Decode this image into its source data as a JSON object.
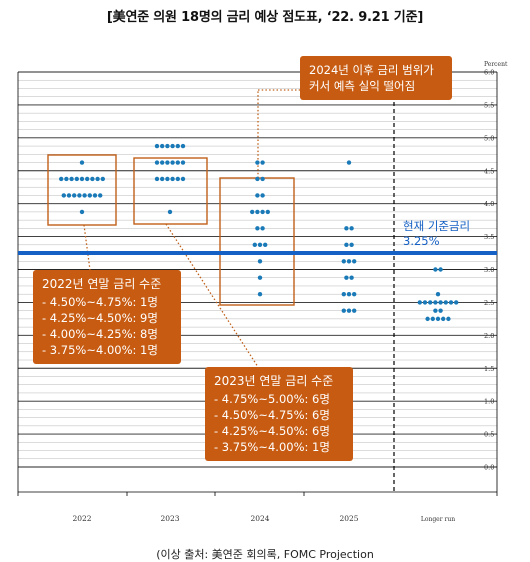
{
  "title": "[美연준 의원 18명의 금리 예상 점도표, ‘22. 9.21 기준]",
  "source": "(이상 출처: 美연준 회의록, FOMC Projection",
  "colors": {
    "dot": "#1a7ab8",
    "current_line": "#1560c4",
    "box_border": "#c0611a",
    "callout_bg": "#c75b12",
    "leader": "#c0611a",
    "grid": "#000000"
  },
  "chart_data": {
    "type": "scatter",
    "title": "",
    "ylabel": "Percent",
    "ylim": [
      0.0,
      6.0
    ],
    "y_ticks": [
      "0.0",
      "0.5",
      "1.0",
      "1.5",
      "2.0",
      "2.5",
      "3.0",
      "3.5",
      "4.0",
      "4.5",
      "5.0",
      "5.5",
      "6.0"
    ],
    "categories": [
      "2022",
      "2023",
      "2024",
      "2025",
      "Longer run"
    ],
    "dots": [
      {
        "category": "2022",
        "levels": [
          {
            "rate": 4.625,
            "count": 1
          },
          {
            "rate": 4.375,
            "count": 9
          },
          {
            "rate": 4.125,
            "count": 8
          },
          {
            "rate": 3.875,
            "count": 1
          }
        ]
      },
      {
        "category": "2023",
        "levels": [
          {
            "rate": 4.875,
            "count": 6
          },
          {
            "rate": 4.625,
            "count": 6
          },
          {
            "rate": 4.375,
            "count": 6
          },
          {
            "rate": 3.875,
            "count": 1
          }
        ]
      },
      {
        "category": "2024",
        "levels": [
          {
            "rate": 4.625,
            "count": 2
          },
          {
            "rate": 4.375,
            "count": 2
          },
          {
            "rate": 4.125,
            "count": 2
          },
          {
            "rate": 3.875,
            "count": 4
          },
          {
            "rate": 3.625,
            "count": 2
          },
          {
            "rate": 3.375,
            "count": 3
          },
          {
            "rate": 3.125,
            "count": 1
          },
          {
            "rate": 2.875,
            "count": 1
          },
          {
            "rate": 2.625,
            "count": 1
          }
        ]
      },
      {
        "category": "2025",
        "levels": [
          {
            "rate": 4.625,
            "count": 1
          },
          {
            "rate": 3.625,
            "count": 2
          },
          {
            "rate": 3.375,
            "count": 2
          },
          {
            "rate": 3.125,
            "count": 3
          },
          {
            "rate": 2.875,
            "count": 2
          },
          {
            "rate": 2.625,
            "count": 3
          },
          {
            "rate": 2.375,
            "count": 3
          }
        ]
      },
      {
        "category": "Longer run",
        "levels": [
          {
            "rate": 3.0,
            "count": 2
          },
          {
            "rate": 2.625,
            "count": 1
          },
          {
            "rate": 2.5,
            "count": 8
          },
          {
            "rate": 2.375,
            "count": 2
          },
          {
            "rate": 2.25,
            "count": 5
          }
        ]
      }
    ],
    "current_rate": 3.25,
    "current_rate_label": "현재 기준금리",
    "current_rate_value": "3.25%",
    "annotations": {
      "box_2022": {
        "label": "2022년 연말 금리 수준",
        "lines": [
          "- 4.50%~4.75%: 1명",
          "- 4.25%~4.50%: 9명",
          "- 4.00%~4.25%: 8명",
          "- 3.75%~4.00%: 1명"
        ]
      },
      "box_2023": {
        "label": "2023년 연말 금리 수준",
        "lines": [
          "- 4.75%~5.00%: 6명",
          "- 4.50%~4.75%: 6명",
          "- 4.25%~4.50%: 6명",
          "- 3.75%~4.00%: 1명"
        ]
      },
      "note_2024": {
        "lines": [
          "2024년 이후 금리 범위가",
          "커서 예측 실익 떨어짐"
        ]
      }
    }
  }
}
